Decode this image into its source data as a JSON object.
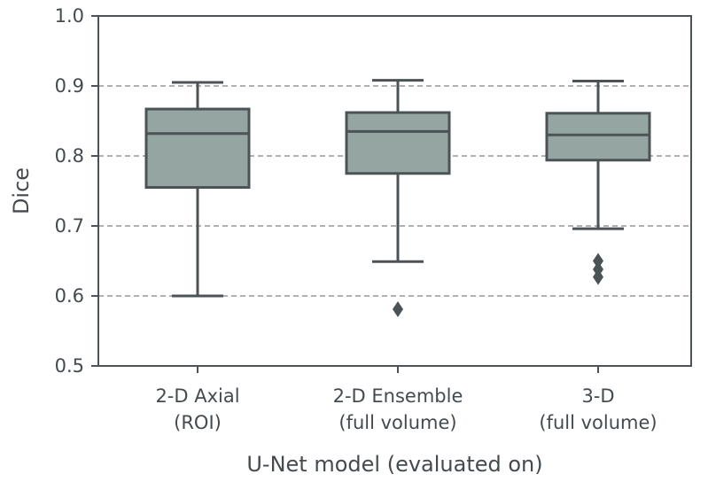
{
  "chart_data": {
    "type": "box",
    "title": "",
    "xlabel": "U-Net model (evaluated on)",
    "ylabel": "Dice",
    "ylim": [
      0.5,
      1.0
    ],
    "yticks": [
      "0.5",
      "0.6",
      "0.7",
      "0.8",
      "0.9",
      "1.0"
    ],
    "grid": "horizontal dashed at 0.6, 0.7, 0.8, 0.9",
    "colors": {
      "box_fill": "#95a5a2",
      "line": "#4b5357",
      "grid": "#808080"
    },
    "categories": [
      {
        "label_line1": "2-D Axial",
        "label_line2": "(ROI)",
        "whisker_low": 0.6,
        "q1": 0.755,
        "median": 0.832,
        "q3": 0.867,
        "whisker_high": 0.905,
        "outliers": []
      },
      {
        "label_line1": "2-D Ensemble",
        "label_line2": "(full volume)",
        "whisker_low": 0.649,
        "q1": 0.775,
        "median": 0.835,
        "q3": 0.862,
        "whisker_high": 0.908,
        "outliers": [
          0.581
        ]
      },
      {
        "label_line1": "3-D",
        "label_line2": "(full volume)",
        "whisker_low": 0.696,
        "q1": 0.794,
        "median": 0.83,
        "q3": 0.861,
        "whisker_high": 0.907,
        "outliers": [
          0.65,
          0.638,
          0.627
        ]
      }
    ]
  }
}
